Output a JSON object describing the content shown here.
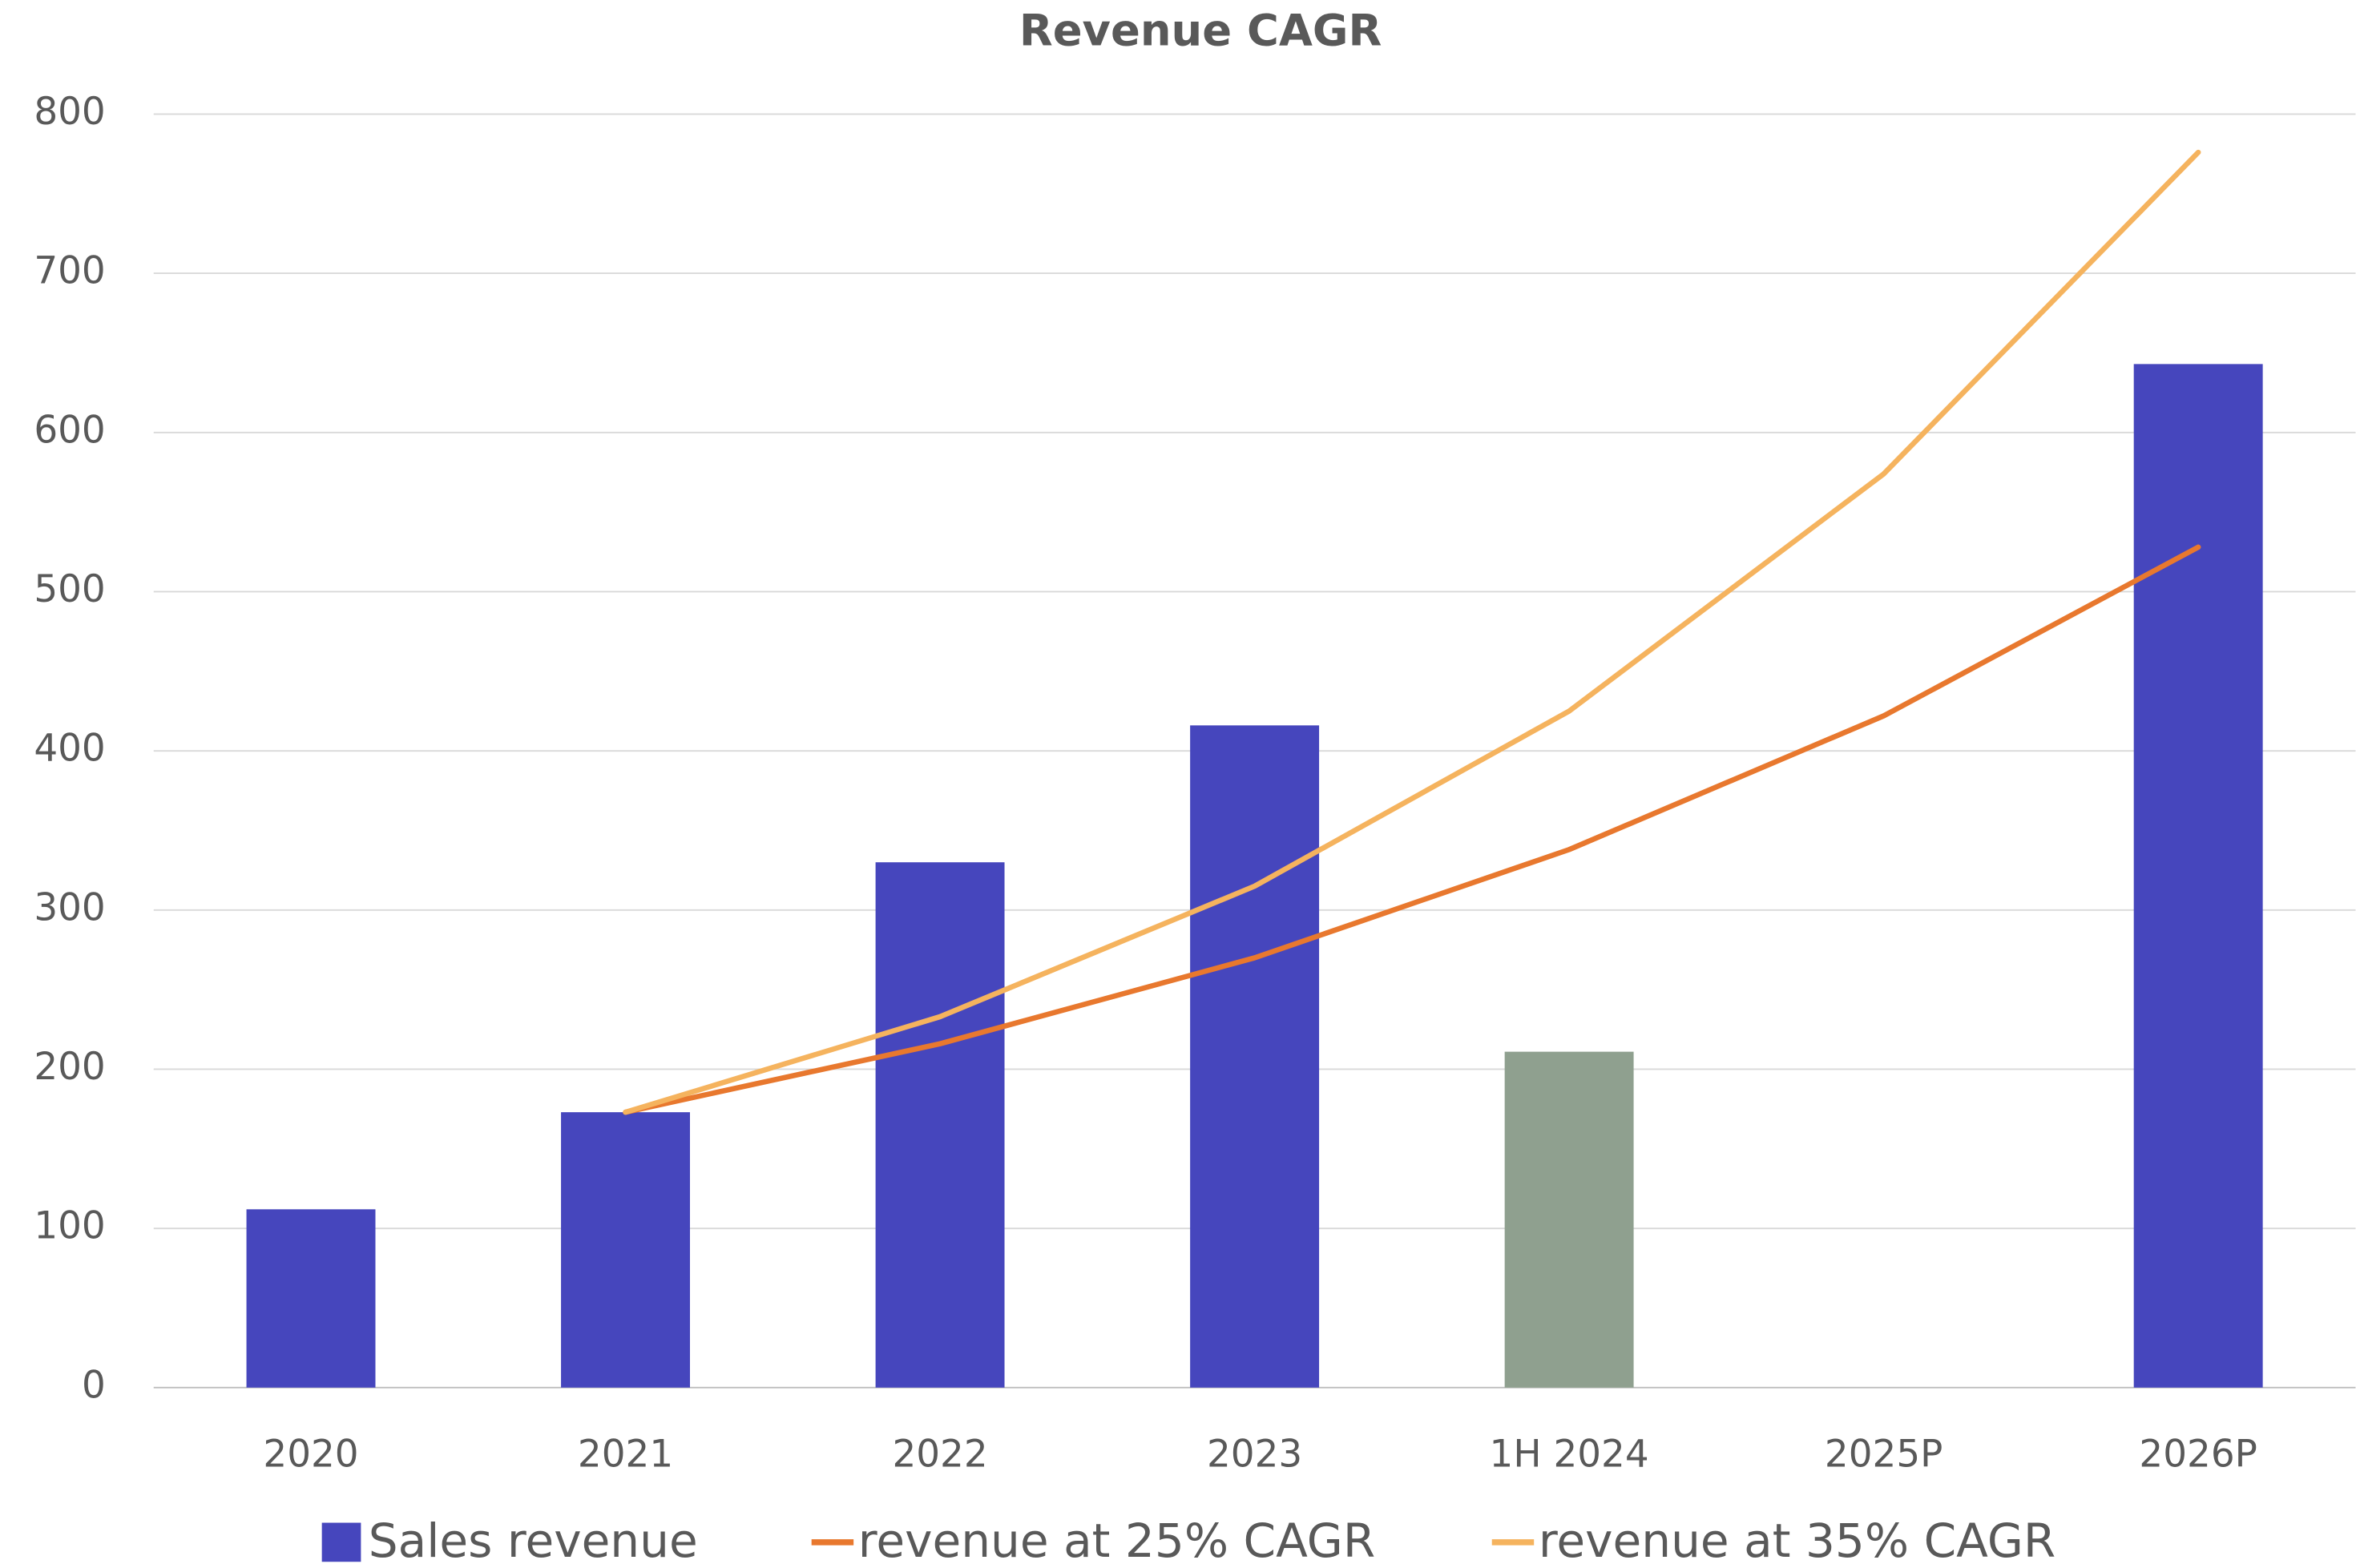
{
  "chart_data": {
    "type": "bar",
    "title": "Revenue CAGR",
    "categories": [
      "2020",
      "2021",
      "2022",
      "2023",
      "1H 2024",
      "2025P",
      "2026P"
    ],
    "series": [
      {
        "name": "Sales revenue",
        "type": "bar",
        "color": "#4646bd",
        "colors": [
          "#4646bd",
          "#4646bd",
          "#4646bd",
          "#4646bd",
          "#8fa08f",
          "#4646bd",
          "#4646bd"
        ],
        "values": [
          112,
          173,
          330,
          416,
          211,
          null,
          643
        ]
      },
      {
        "name": "revenue at 25% CAGR",
        "type": "line",
        "color": "#e8782e",
        "values": [
          null,
          173,
          216,
          270,
          338,
          422,
          528
        ]
      },
      {
        "name": "revenue at 35% CAGR",
        "type": "line",
        "color": "#f5b35e",
        "values": [
          null,
          173,
          233,
          315,
          425,
          574,
          776
        ]
      }
    ],
    "ylim": [
      0,
      800
    ],
    "yticks": [
      0,
      100,
      200,
      300,
      400,
      500,
      600,
      700,
      800
    ],
    "grid": true,
    "legend": "bottom"
  }
}
